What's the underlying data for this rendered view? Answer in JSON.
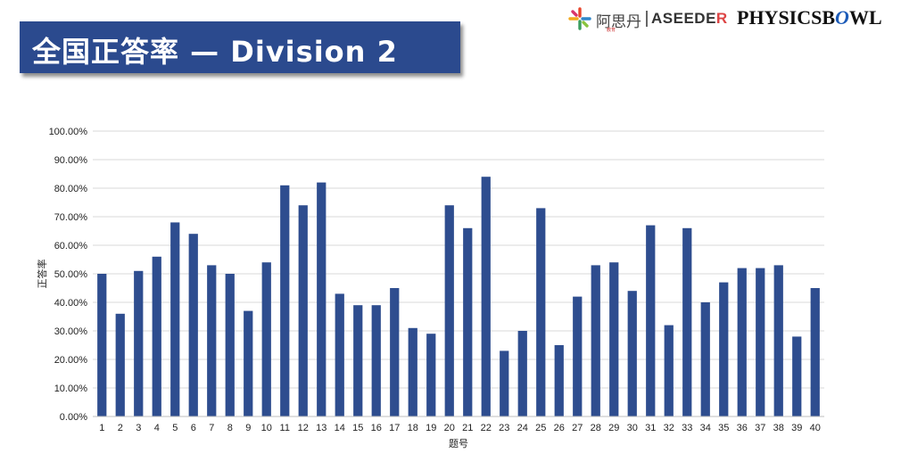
{
  "header": {
    "title": "全国正答率 — Division 2"
  },
  "logos": {
    "cn_name": "阿思丹",
    "cn_small": "教育",
    "aseeder_a": "ASEEDE",
    "aseeder_b": "R",
    "physics_a": "PHYSICSB",
    "physics_b": "O",
    "physics_c": "WL"
  },
  "colors": {
    "banner": "#2b4a8e",
    "bar": "#2e4d8f",
    "grid": "#d9d9d9"
  },
  "chart_data": {
    "type": "bar",
    "xlabel": "题号",
    "ylabel": "正答率",
    "ylim": [
      0,
      100
    ],
    "y_ticks": [
      "0.00%",
      "10.00%",
      "20.00%",
      "30.00%",
      "40.00%",
      "50.00%",
      "60.00%",
      "70.00%",
      "80.00%",
      "90.00%",
      "100.00%"
    ],
    "grid": true,
    "categories": [
      "1",
      "2",
      "3",
      "4",
      "5",
      "6",
      "7",
      "8",
      "9",
      "10",
      "11",
      "12",
      "13",
      "14",
      "15",
      "16",
      "17",
      "18",
      "19",
      "20",
      "21",
      "22",
      "23",
      "24",
      "25",
      "26",
      "27",
      "28",
      "29",
      "30",
      "31",
      "32",
      "33",
      "34",
      "35",
      "36",
      "37",
      "38",
      "39",
      "40"
    ],
    "values": [
      50,
      36,
      51,
      56,
      68,
      64,
      53,
      50,
      37,
      54,
      81,
      74,
      82,
      43,
      39,
      39,
      45,
      31,
      29,
      74,
      66,
      84,
      23,
      30,
      73,
      25,
      42,
      53,
      54,
      44,
      67,
      32,
      66,
      40,
      47,
      52,
      52,
      53,
      28,
      45
    ]
  }
}
